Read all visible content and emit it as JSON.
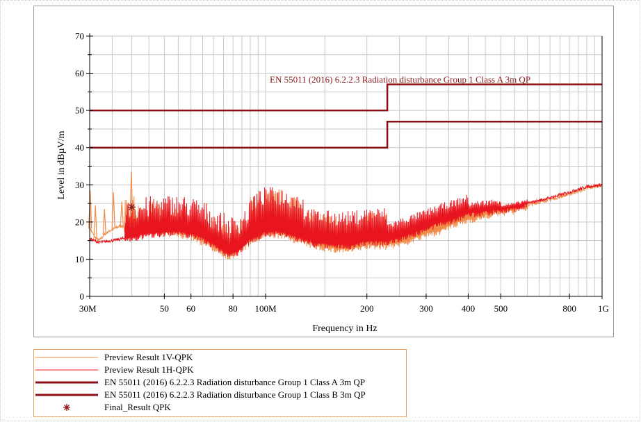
{
  "chart_data": {
    "type": "line",
    "xlabel": "Frequency in Hz",
    "ylabel": "Level in dBµV/m",
    "x_scale": "log",
    "xlim": [
      30000000,
      1000000000
    ],
    "ylim": [
      0,
      70
    ],
    "grid": true,
    "x_ticks": [
      {
        "value": 30000000,
        "label": "30M"
      },
      {
        "value": 50000000,
        "label": "50"
      },
      {
        "value": 60000000,
        "label": "60"
      },
      {
        "value": 80000000,
        "label": "80"
      },
      {
        "value": 100000000,
        "label": "100M"
      },
      {
        "value": 200000000,
        "label": "200"
      },
      {
        "value": 300000000,
        "label": "300"
      },
      {
        "value": 400000000,
        "label": "400"
      },
      {
        "value": 500000000,
        "label": "500"
      },
      {
        "value": 800000000,
        "label": "800"
      },
      {
        "value": 1000000000,
        "label": "1G"
      }
    ],
    "y_ticks": [
      0,
      10,
      20,
      30,
      40,
      50,
      60,
      70
    ],
    "annotation": "EN 55011 (2016) 6.2.2.3 Radiation disturbance Group 1 Class A 3m QP",
    "series": [
      {
        "name": "Preview Result 1V-QPK",
        "color": "#f08c4a",
        "style": "thin-line",
        "x": [
          30000000,
          31000000,
          32000000,
          33500000,
          35000000,
          37000000,
          39000000,
          40000000,
          42000000,
          45000000,
          50000000,
          55000000,
          60000000,
          65000000,
          70000000,
          75000000,
          78000000,
          82000000,
          90000000,
          100000000,
          110000000,
          120000000,
          140000000,
          160000000,
          180000000,
          200000000,
          230000000,
          260000000,
          300000000,
          330000000,
          360000000,
          400000000,
          450000000,
          500000000,
          550000000,
          600000000,
          700000000,
          800000000,
          900000000,
          1000000000
        ],
        "y": [
          18.5,
          16,
          15,
          17,
          18,
          19,
          18.5,
          20,
          18.5,
          17.5,
          17.5,
          17,
          16.5,
          15,
          13.5,
          12,
          11,
          12,
          15,
          17,
          17,
          16,
          14,
          13,
          13,
          14,
          14,
          15,
          17,
          18,
          19.5,
          21,
          22,
          23,
          23.5,
          24.5,
          26,
          27.5,
          29,
          30
        ]
      },
      {
        "name": "Preview Result 1H-QPK",
        "color": "#e8141e",
        "style": "thin-line",
        "x": [
          30000000,
          32000000,
          35000000,
          40000000,
          45000000,
          50000000,
          55000000,
          60000000,
          65000000,
          70000000,
          75000000,
          78000000,
          82000000,
          90000000,
          100000000,
          110000000,
          120000000,
          140000000,
          160000000,
          180000000,
          200000000,
          230000000,
          260000000,
          300000000,
          330000000,
          360000000,
          400000000,
          450000000,
          500000000,
          550000000,
          600000000,
          700000000,
          800000000,
          900000000,
          1000000000
        ],
        "y": [
          15.5,
          14.5,
          15,
          16,
          17,
          17.5,
          17.5,
          17,
          16,
          14,
          12.5,
          11.5,
          12,
          15.5,
          17.5,
          17.5,
          16.5,
          14.5,
          14,
          14,
          15,
          15,
          16.5,
          18.5,
          20,
          21,
          22.5,
          23,
          23.5,
          24,
          25,
          26.5,
          28,
          29.5,
          30
        ]
      },
      {
        "name": "EN 55011 (2016) 6.2.2.3 Radiation disturbance Group 1 Class A 3m QP",
        "color": "#8b0f14",
        "style": "thick-line",
        "x": [
          30000000,
          230000000,
          230000000,
          1000000000
        ],
        "y": [
          50,
          50,
          57,
          57
        ]
      },
      {
        "name": "EN 55011 (2016) 6.2.2.3 Radiation disturbance Group 1 Class B 3m QP",
        "color": "#8b0f14",
        "style": "thick-line",
        "x": [
          30000000,
          230000000,
          230000000,
          1000000000
        ],
        "y": [
          40,
          40,
          47,
          47
        ]
      },
      {
        "name": "Final_Result QPK",
        "color": "#8b1a1a",
        "style": "marker",
        "marker": "asterisk",
        "x": [
          40000000
        ],
        "y": [
          24
        ]
      }
    ]
  }
}
